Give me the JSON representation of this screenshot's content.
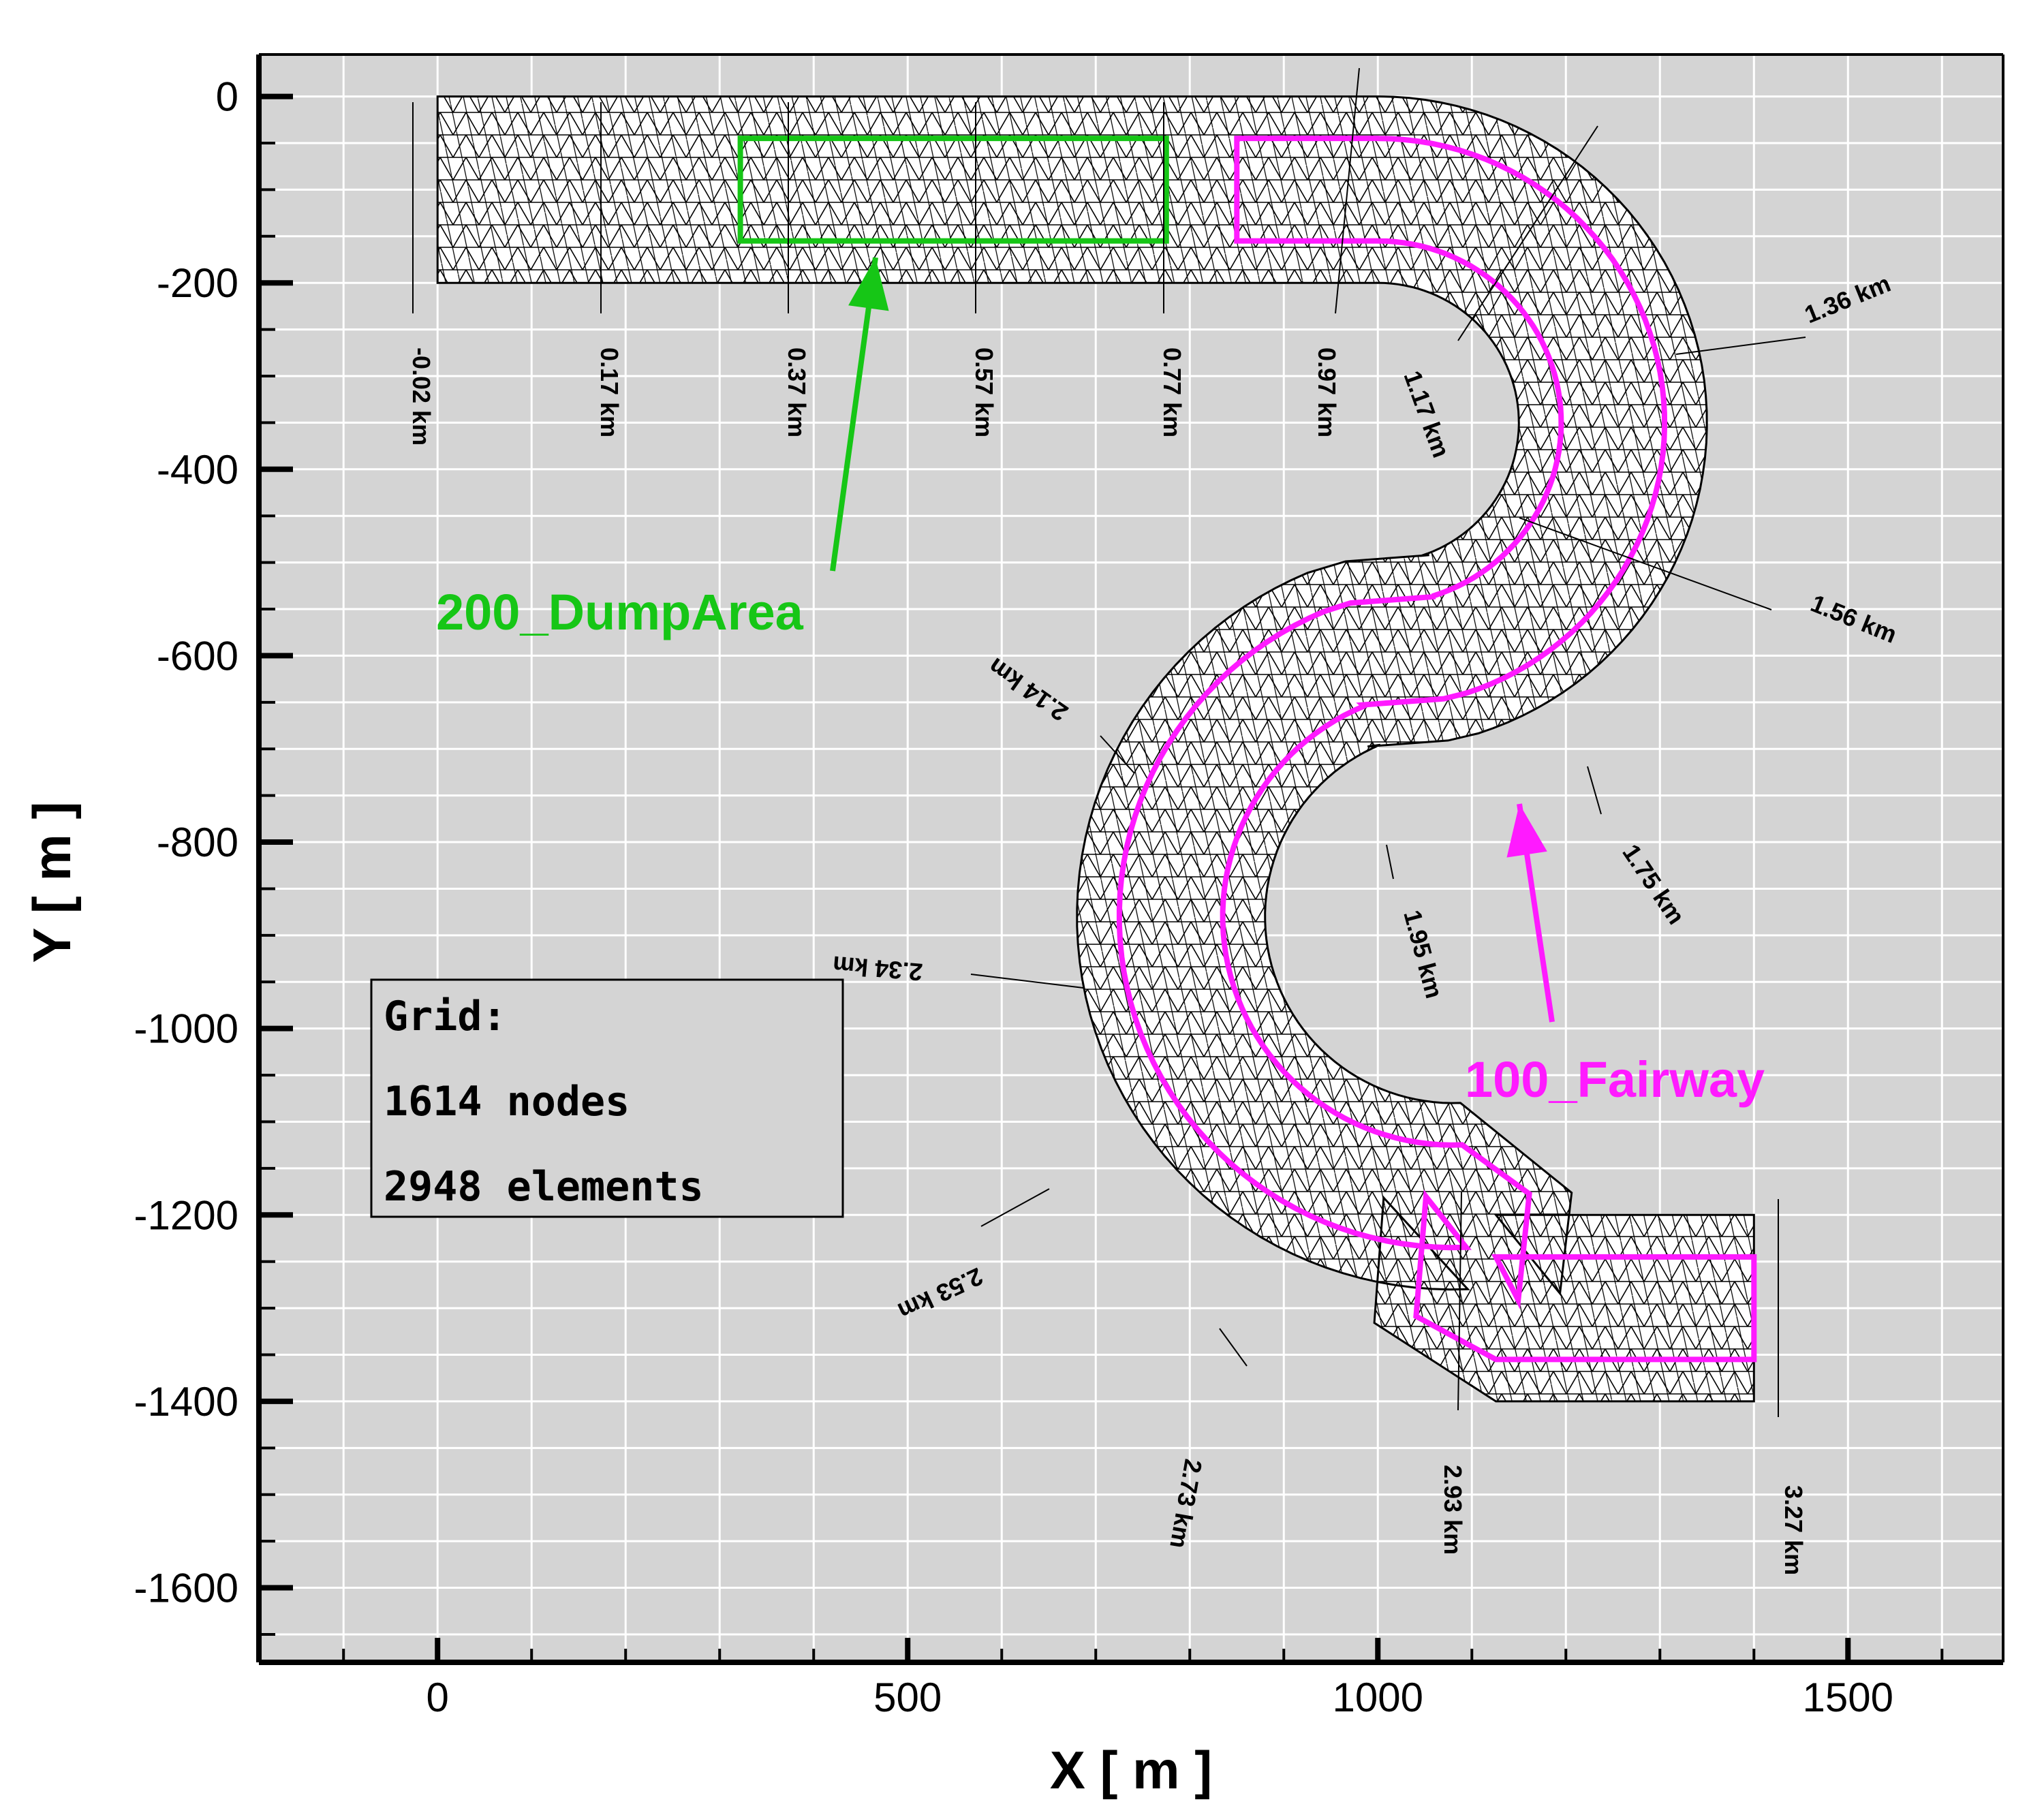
{
  "axes": {
    "x": {
      "title": "X  [ m ]",
      "ticks": [
        "0",
        "500",
        "1000",
        "1500"
      ],
      "range": [
        -190,
        1665
      ]
    },
    "y": {
      "title": "Y  [ m ]",
      "ticks": [
        "0",
        "-200",
        "-400",
        "-600",
        "-800",
        "-1000",
        "-1200",
        "-1400",
        "-1600"
      ],
      "range": [
        -1680,
        45
      ]
    },
    "grid": true
  },
  "colors": {
    "background": "#d4d4d4",
    "grid": "#ffffff",
    "mesh": "#000000",
    "dump_area": "#16c616",
    "fairway": "#ff1aff"
  },
  "chainage_labels": [
    "-0.02 km",
    "0.17 km",
    "0.37 km",
    "0.57 km",
    "0.77 km",
    "0.97 km",
    "1.17 km",
    "1.36 km",
    "1.56 km",
    "1.75 km",
    "1.95 km",
    "2.14 km",
    "2.34 km",
    "2.53 km",
    "2.73 km",
    "2.93 km",
    "3.27 km"
  ],
  "info_box": {
    "line1": "Grid:",
    "line2": "1614 nodes",
    "line3": "2948 elements"
  },
  "regions": {
    "dump_area": {
      "label": "200_DumpArea"
    },
    "fairway": {
      "label": "100_Fairway"
    }
  }
}
